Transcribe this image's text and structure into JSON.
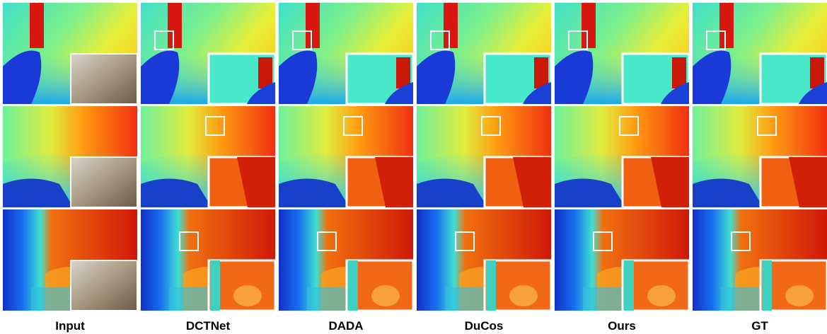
{
  "figure": {
    "columns": [
      "Input",
      "DCTNet",
      "DADA",
      "DuCos",
      "Ours",
      "GT"
    ]
  }
}
